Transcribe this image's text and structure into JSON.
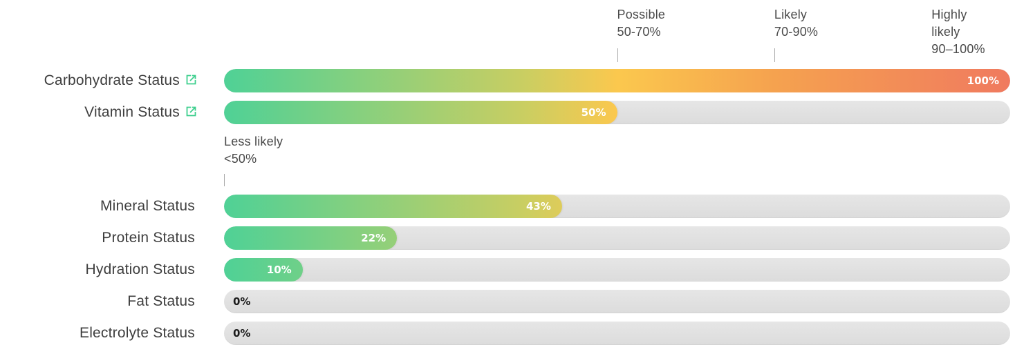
{
  "chart_data": {
    "type": "bar",
    "orientation": "horizontal",
    "xlim": [
      0,
      100
    ],
    "categories": [
      "Carbohydrate Status",
      "Vitamin Status",
      "Mineral Status",
      "Protein Status",
      "Hydration Status",
      "Fat Status",
      "Electrolyte Status"
    ],
    "values": [
      100,
      50,
      43,
      22,
      10,
      0,
      0
    ],
    "value_labels": [
      "100%",
      "50%",
      "43%",
      "22%",
      "10%",
      "0%",
      "0%"
    ],
    "external_link_rows": [
      "Carbohydrate Status",
      "Vitamin Status"
    ],
    "threshold_markers": [
      {
        "name": "less-likely",
        "value": 0,
        "lines": [
          "Less likely",
          "<50%"
        ]
      },
      {
        "name": "possible",
        "value": 50,
        "lines": [
          "Possible",
          "50-70%"
        ]
      },
      {
        "name": "likely",
        "value": 70,
        "lines": [
          "Likely",
          "70-90%"
        ]
      },
      {
        "name": "highly-likely",
        "value": 90,
        "lines": [
          "Highly",
          "likely",
          "90–100%"
        ]
      }
    ],
    "colors": {
      "gradient": [
        "#4fd196",
        "#c9ce62",
        "#fbc84e",
        "#f5a24f",
        "#f07a5f"
      ],
      "track": "#e1e1e1",
      "link_icon": "#3ecf8e"
    }
  }
}
